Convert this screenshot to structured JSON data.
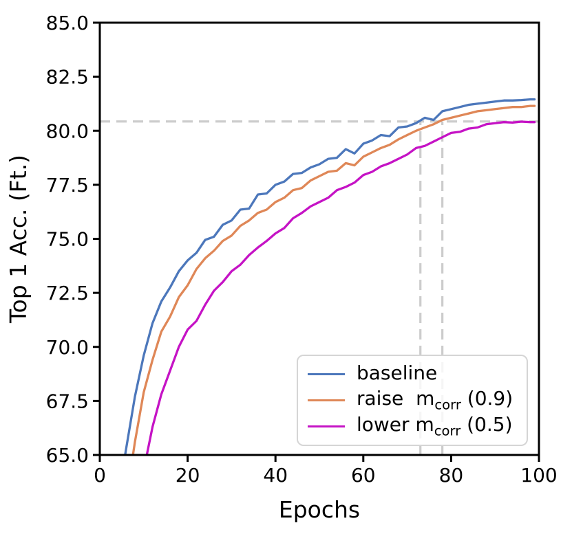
{
  "figure": {
    "background": "#ffffff",
    "text_color": "#000000",
    "spine_color": "#000000"
  },
  "chart_data": {
    "type": "line",
    "title": "",
    "xlabel": "Epochs",
    "ylabel": "Top 1 Acc. (Ft.)",
    "grid": false,
    "x_axis": {
      "label": "Epochs",
      "range": [
        0,
        100
      ],
      "ticks": [
        0,
        20,
        40,
        60,
        80,
        100
      ],
      "tick_labels": [
        "0",
        "20",
        "40",
        "60",
        "80",
        "100"
      ]
    },
    "y_axis": {
      "label": "Top 1 Acc. (Ft.)",
      "range": [
        65.0,
        85.0
      ],
      "ticks": [
        65.0,
        67.5,
        70.0,
        72.5,
        75.0,
        77.5,
        80.0,
        82.5,
        85.0
      ],
      "tick_labels": [
        "65.0",
        "67.5",
        "70.0",
        "72.5",
        "75.0",
        "77.5",
        "80.0",
        "82.5",
        "85.0"
      ]
    },
    "series": [
      {
        "name": "baseline",
        "color": "#4c77bb",
        "x": [
          4,
          6,
          8,
          10,
          12,
          14,
          16,
          18,
          20,
          22,
          24,
          26,
          28,
          30,
          32,
          34,
          36,
          38,
          40,
          42,
          44,
          46,
          48,
          50,
          52,
          54,
          56,
          58,
          60,
          62,
          64,
          66,
          68,
          70,
          72,
          74,
          76,
          78,
          80,
          82,
          84,
          86,
          88,
          90,
          92,
          94,
          96,
          98,
          99
        ],
        "values": [
          62.8,
          65.3,
          67.7,
          69.6,
          71.1,
          72.1,
          72.75,
          73.5,
          74.0,
          74.35,
          74.95,
          75.1,
          75.65,
          75.85,
          76.35,
          76.4,
          77.05,
          77.1,
          77.5,
          77.65,
          78.0,
          78.05,
          78.3,
          78.45,
          78.7,
          78.75,
          79.15,
          78.95,
          79.4,
          79.55,
          79.8,
          79.75,
          80.15,
          80.2,
          80.35,
          80.6,
          80.5,
          80.9,
          81.0,
          81.1,
          81.2,
          81.25,
          81.3,
          81.35,
          81.4,
          81.4,
          81.42,
          81.45,
          81.45
        ]
      },
      {
        "name": "raise m_corr (0.9)",
        "color": "#df8757",
        "x": [
          6,
          8,
          10,
          12,
          14,
          16,
          18,
          20,
          22,
          24,
          26,
          28,
          30,
          32,
          34,
          36,
          38,
          40,
          42,
          44,
          46,
          48,
          50,
          52,
          54,
          56,
          58,
          60,
          62,
          64,
          66,
          68,
          70,
          72,
          74,
          76,
          78,
          80,
          82,
          84,
          86,
          88,
          90,
          92,
          94,
          96,
          98,
          99
        ],
        "values": [
          62.9,
          65.6,
          67.9,
          69.4,
          70.7,
          71.4,
          72.3,
          72.85,
          73.6,
          74.1,
          74.45,
          74.9,
          75.15,
          75.6,
          75.85,
          76.2,
          76.35,
          76.7,
          76.9,
          77.25,
          77.35,
          77.7,
          77.9,
          78.1,
          78.15,
          78.5,
          78.4,
          78.8,
          79.0,
          79.2,
          79.35,
          79.6,
          79.8,
          80.0,
          80.15,
          80.3,
          80.5,
          80.6,
          80.7,
          80.8,
          80.9,
          80.95,
          81.0,
          81.05,
          81.1,
          81.1,
          81.15,
          81.15
        ]
      },
      {
        "name": "lower m_corr (0.5)",
        "color": "#c513c5",
        "x": [
          8,
          10,
          12,
          14,
          16,
          18,
          20,
          22,
          24,
          26,
          28,
          30,
          32,
          34,
          36,
          38,
          40,
          42,
          44,
          46,
          48,
          50,
          52,
          54,
          56,
          58,
          60,
          62,
          64,
          66,
          68,
          70,
          72,
          74,
          76,
          78,
          80,
          82,
          84,
          86,
          88,
          90,
          92,
          94,
          96,
          98,
          99
        ],
        "values": [
          62.4,
          64.3,
          66.3,
          67.8,
          68.9,
          70.0,
          70.8,
          71.2,
          71.95,
          72.6,
          73.0,
          73.5,
          73.8,
          74.25,
          74.6,
          74.9,
          75.25,
          75.5,
          75.95,
          76.2,
          76.5,
          76.7,
          76.9,
          77.25,
          77.4,
          77.6,
          77.95,
          78.1,
          78.35,
          78.5,
          78.7,
          78.9,
          79.2,
          79.3,
          79.5,
          79.7,
          79.9,
          79.95,
          80.1,
          80.15,
          80.3,
          80.35,
          80.4,
          80.38,
          80.42,
          80.4,
          80.4
        ]
      }
    ],
    "annotations": {
      "style": "dashed",
      "color": "#cccccc",
      "hline": {
        "value": 80.43
      },
      "vlines": [
        {
          "x": 73
        },
        {
          "x": 78
        }
      ]
    },
    "legend": {
      "position": "lower right",
      "entries": [
        {
          "label": "baseline",
          "label_pre": "baseline",
          "label_sub": "",
          "label_post": "",
          "color": "#4c77bb"
        },
        {
          "label": "raise m_corr (0.9)",
          "label_pre": "raise  m",
          "label_sub": "corr",
          "label_post": " (0.9)",
          "color": "#df8757"
        },
        {
          "label": "lower m_corr (0.5)",
          "label_pre": "lower m",
          "label_sub": "corr",
          "label_post": " (0.5)",
          "color": "#c513c5"
        }
      ]
    }
  }
}
